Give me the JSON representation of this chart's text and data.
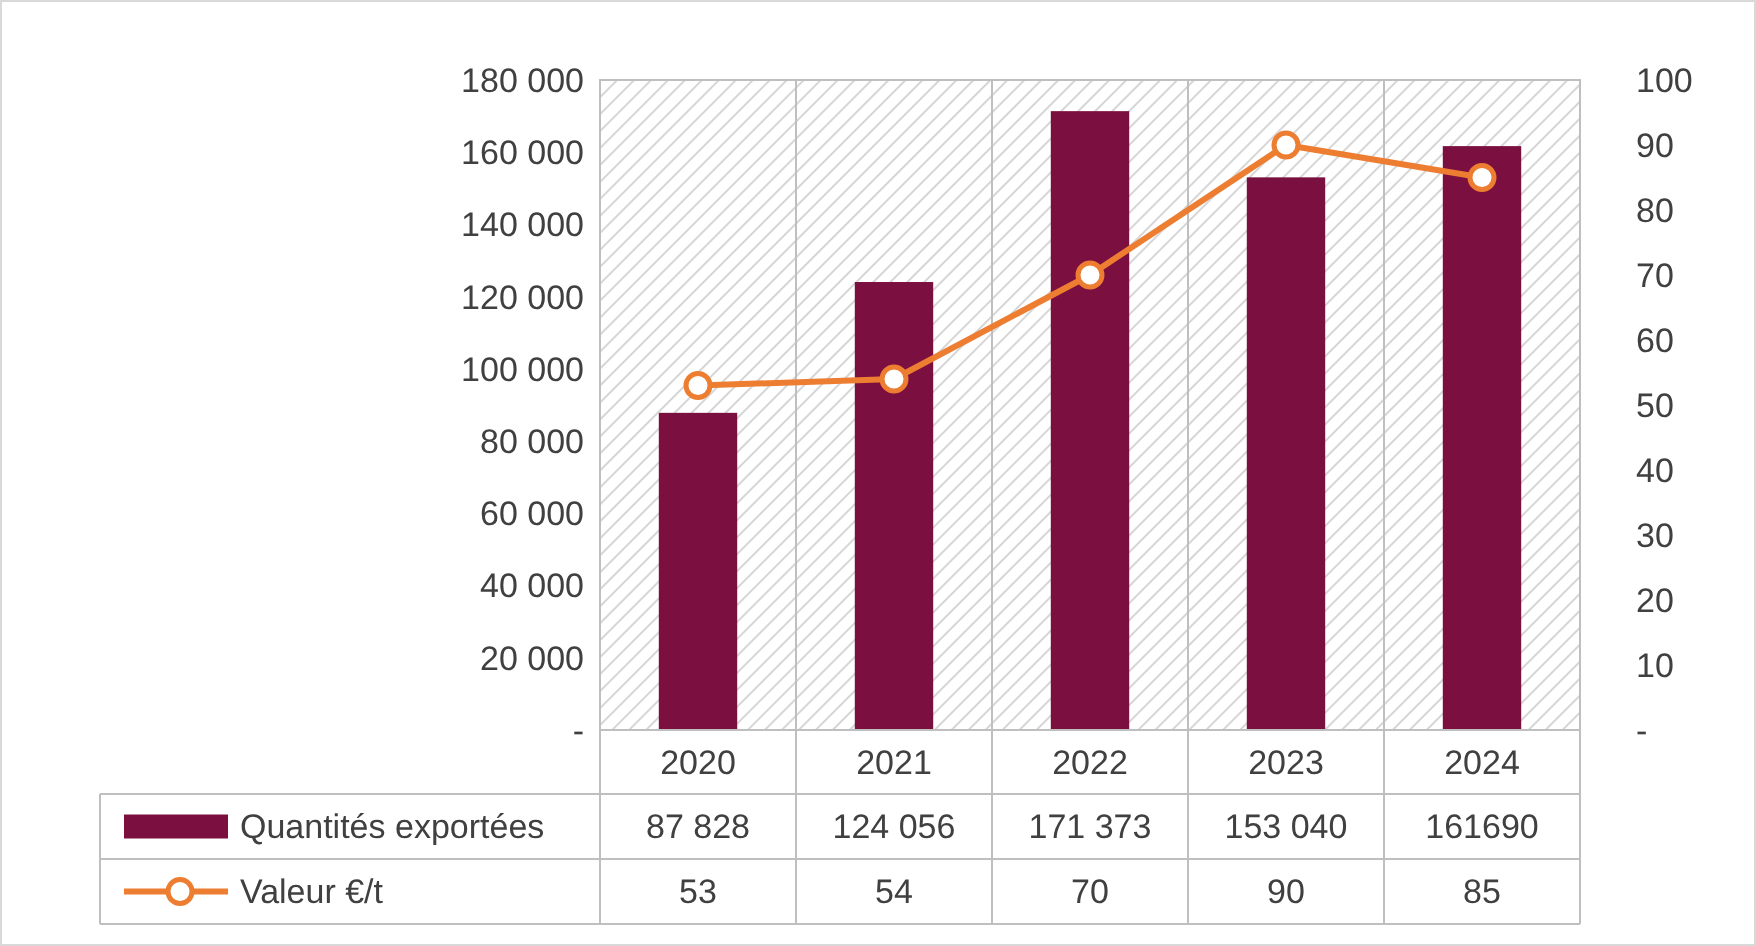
{
  "chart_data": {
    "type": "bar",
    "categories": [
      "2020",
      "2021",
      "2022",
      "2023",
      "2024"
    ],
    "series": [
      {
        "name": "Quantités exportées",
        "color": "#7b0f3f",
        "values": [
          87828,
          124056,
          171373,
          153040,
          161690
        ],
        "value_labels": [
          "87 828",
          "124 056",
          "171 373",
          "153 040",
          "161690"
        ]
      },
      {
        "type": "line",
        "name": "Valeur €/t",
        "color": "#ed7d31",
        "axis": "y2",
        "marker": "circle",
        "values": [
          53,
          54,
          70,
          90,
          85
        ],
        "value_labels": [
          "53",
          "54",
          "70",
          "90",
          "85"
        ]
      }
    ],
    "ylim": [
      0,
      180000
    ],
    "yticks": [
      {
        "value": 0,
        "label": "-"
      },
      {
        "value": 20000,
        "label": "20 000"
      },
      {
        "value": 40000,
        "label": "40 000"
      },
      {
        "value": 60000,
        "label": "60 000"
      },
      {
        "value": 80000,
        "label": "80 000"
      },
      {
        "value": 100000,
        "label": "100 000"
      },
      {
        "value": 120000,
        "label": "120 000"
      },
      {
        "value": 140000,
        "label": "140 000"
      },
      {
        "value": 160000,
        "label": "160 000"
      },
      {
        "value": 180000,
        "label": "180 000"
      }
    ],
    "y2lim": [
      0,
      100
    ],
    "y2ticks": [
      {
        "value": 0,
        "label": "-"
      },
      10,
      20,
      30,
      40,
      50,
      60,
      70,
      80,
      90,
      100
    ],
    "grid": "x",
    "legend": "bottom"
  }
}
